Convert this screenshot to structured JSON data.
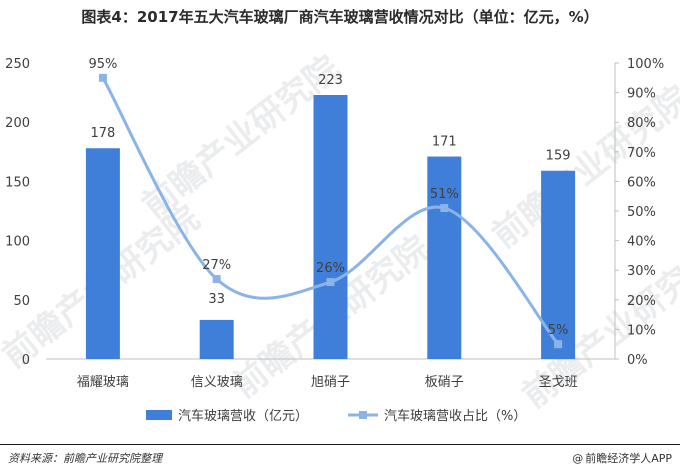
{
  "chart_data": {
    "type": "bar",
    "title": "图表4：2017年五大汽车玻璃厂商汽车玻璃营收情况对比（单位：亿元，%）",
    "categories": [
      "福耀玻璃",
      "信义玻璃",
      "旭硝子",
      "板硝子",
      "圣戈班"
    ],
    "series": [
      {
        "name": "汽车玻璃营收（亿元）",
        "type": "bar",
        "axis": "left",
        "values": [
          178,
          33,
          223,
          171,
          159
        ],
        "labels": [
          "178",
          "33",
          "223",
          "171",
          "159"
        ]
      },
      {
        "name": "汽车玻璃营收占比（%）",
        "type": "line",
        "axis": "right",
        "values": [
          95,
          27,
          26,
          51,
          5
        ],
        "labels": [
          "95%",
          "27%",
          "26%",
          "51%",
          "5%"
        ]
      }
    ],
    "ylim": [
      0,
      250
    ],
    "yticks": [
      "0",
      "50",
      "100",
      "150",
      "200",
      "250"
    ],
    "y2lim": [
      0,
      100
    ],
    "y2ticks": [
      "0%",
      "10%",
      "20%",
      "30%",
      "40%",
      "50%",
      "60%",
      "70%",
      "80%",
      "90%",
      "100%"
    ],
    "grid": false,
    "legend": "bottom",
    "colors": {
      "bar": "#3f7fd9",
      "line": "#8ab4e8",
      "axis": "#bfbfbf"
    }
  },
  "footer": {
    "source": "资料来源：前瞻产业研究院整理",
    "brand": "前瞻经济学人APP",
    "brand_icon": "@"
  },
  "watermark": [
    "前瞻产业研究院",
    "前瞻产业研究院",
    "前瞻产业研究院",
    "前瞻产业研究院"
  ]
}
